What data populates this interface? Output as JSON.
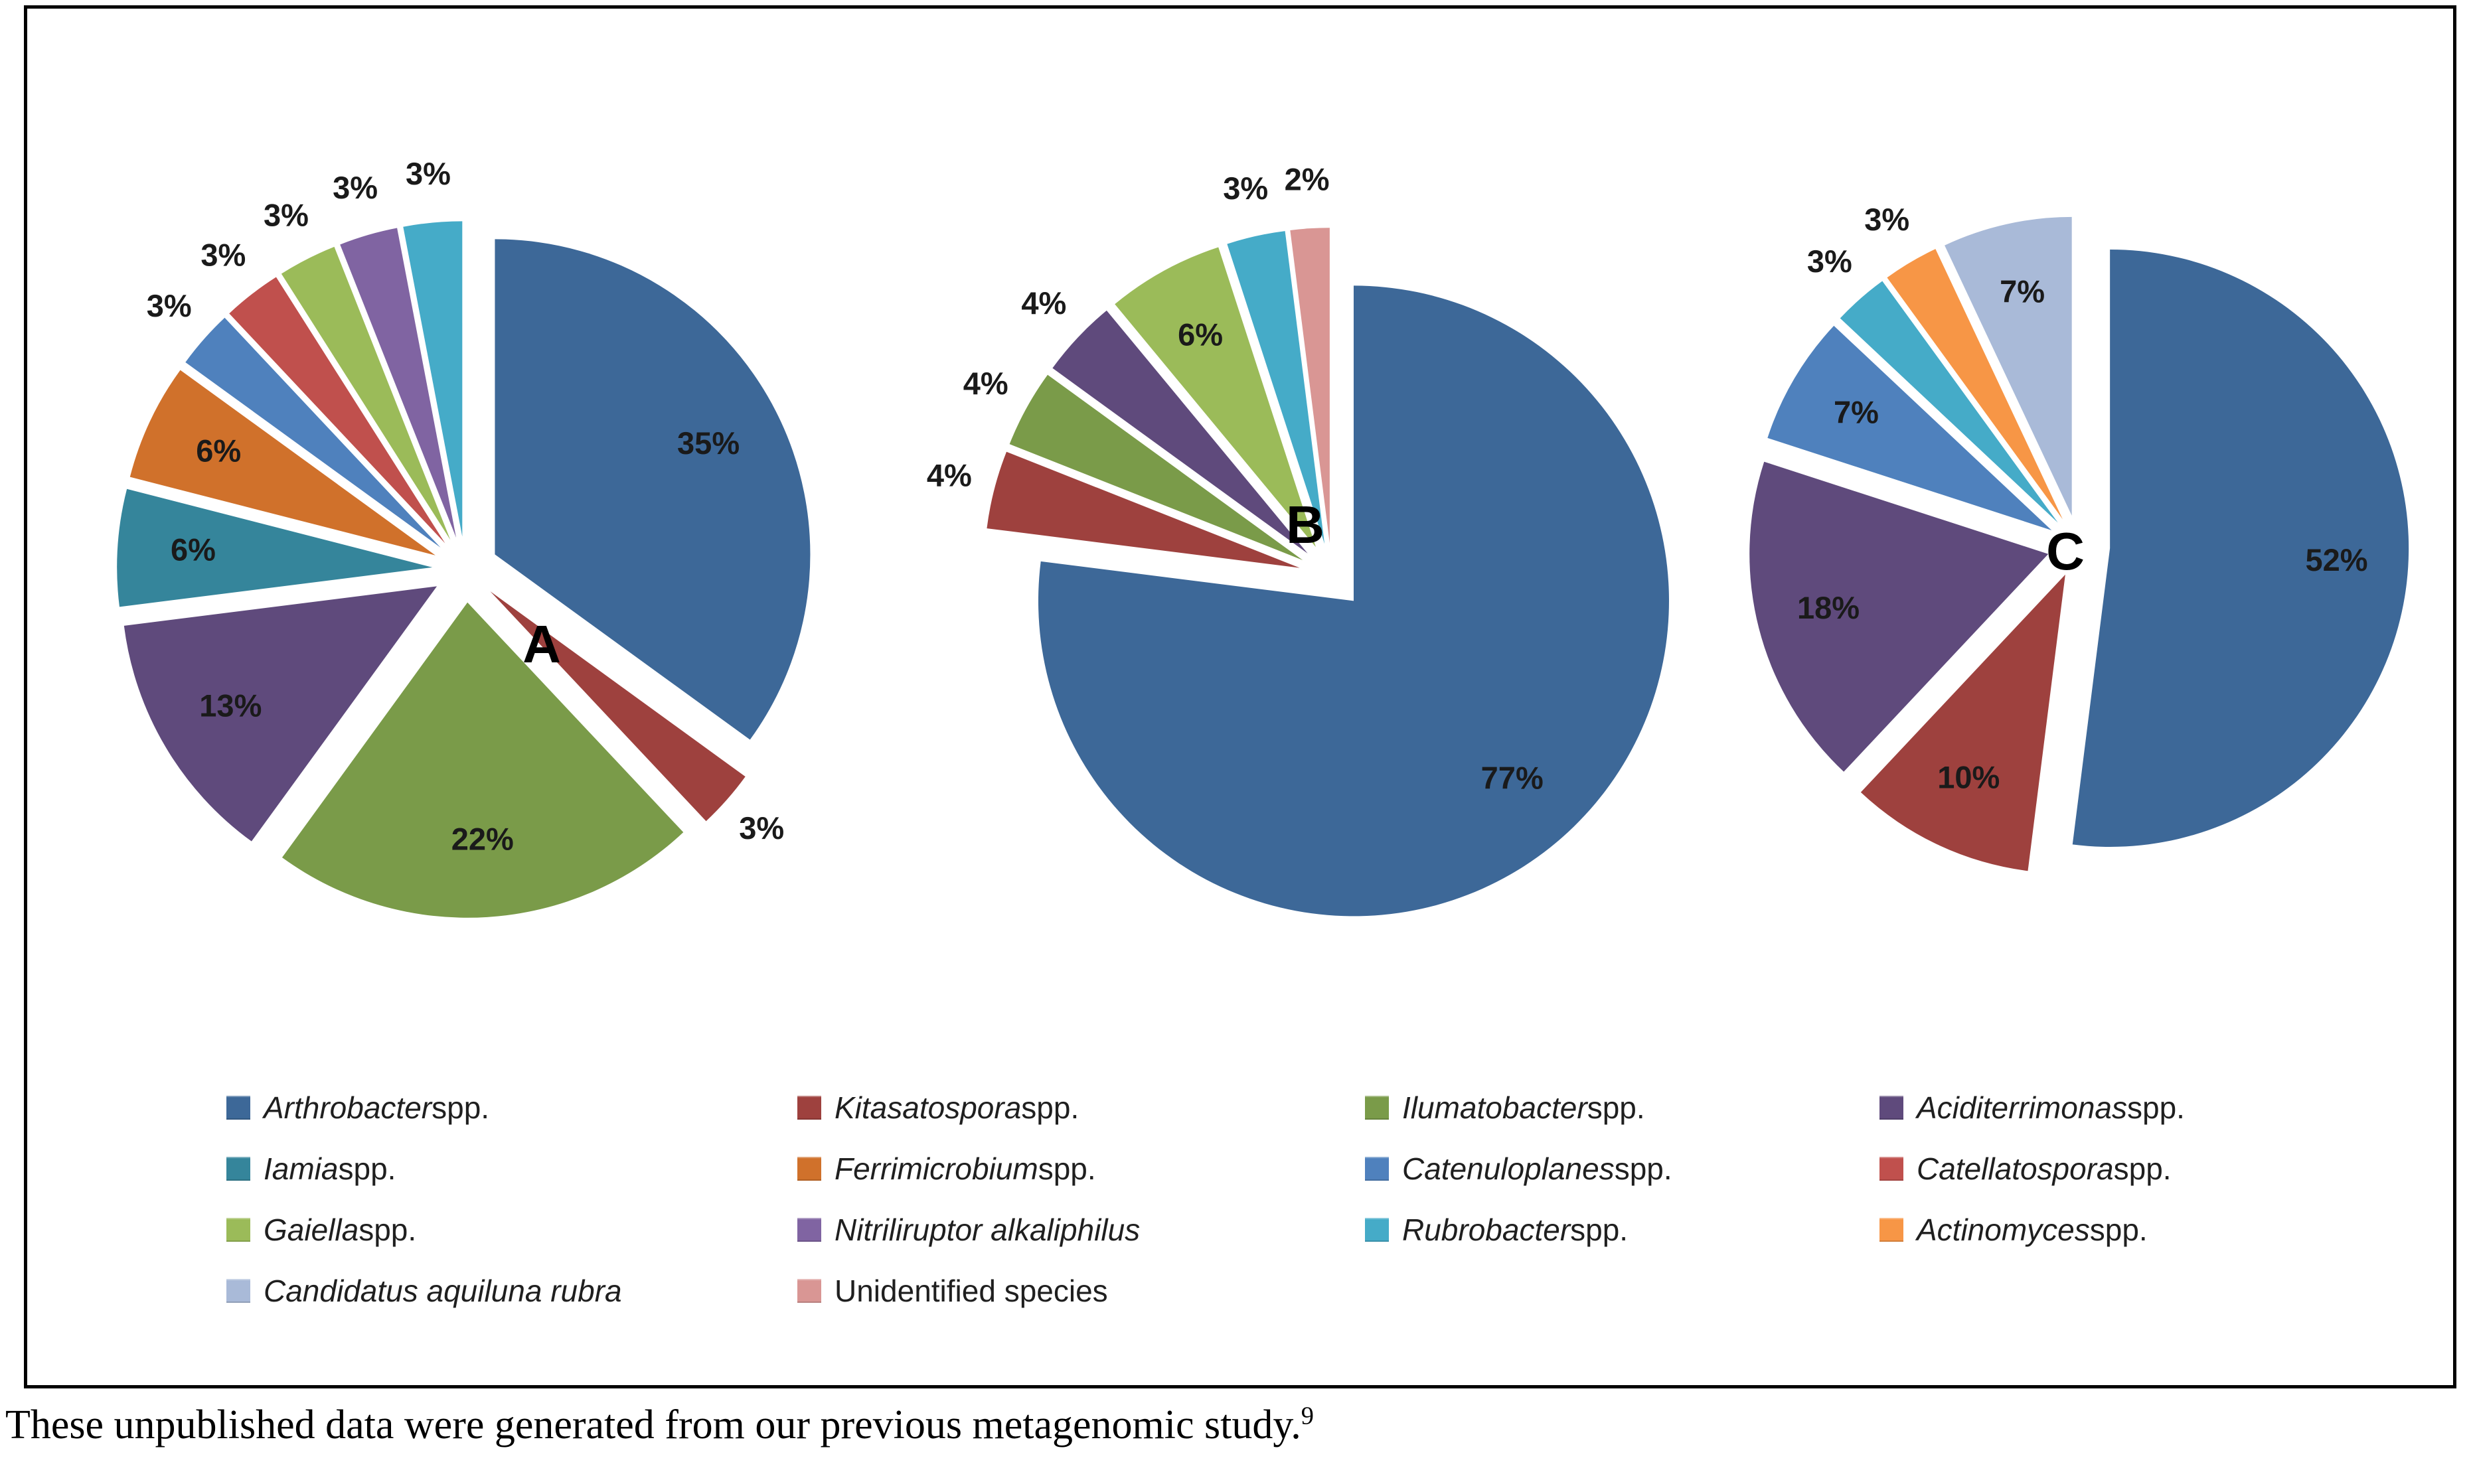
{
  "figure": {
    "panel": {
      "background": "#ffffff",
      "border_color": "#000000"
    },
    "caption": {
      "text": "These unpublished data were generated from our previous metagenomic study.",
      "superscript": "9"
    }
  },
  "palette": {
    "arthrobacter": "#3D6898",
    "kitasatospora": "#9E413E",
    "ilumatobacter": "#7A9B49",
    "aciditerrimonas": "#5F4A7C",
    "iamia": "#35859B",
    "ferrimicrobium": "#D0712B",
    "catenuloplanes": "#4F81BD",
    "catellatospora": "#C0504D",
    "gaiella": "#9BBB59",
    "nitriliruptor": "#8064A2",
    "rubrobacter": "#45ABC8",
    "actinomyces": "#F79646",
    "candidatus": "#A9BAD8",
    "unidentified": "#D99694"
  },
  "legend": {
    "columns": 4,
    "items": [
      {
        "label_italic": "Arthrobacter",
        "label_rest": " spp.",
        "color": "#3D6898"
      },
      {
        "label_italic": "Kitasatospora",
        "label_rest": " spp.",
        "color": "#9E413E"
      },
      {
        "label_italic": "Ilumatobacter",
        "label_rest": " spp.",
        "color": "#7A9B49"
      },
      {
        "label_italic": "Aciditerrimonas",
        "label_rest": " spp.",
        "color": "#5F4A7C"
      },
      {
        "label_italic": "Iamia",
        "label_rest": " spp.",
        "color": "#35859B"
      },
      {
        "label_italic": "Ferrimicrobium",
        "label_rest": " spp.",
        "color": "#D0712B"
      },
      {
        "label_italic": "Catenuloplanes",
        "label_rest": " spp.",
        "color": "#4F81BD"
      },
      {
        "label_italic": "Catellatospora",
        "label_rest": " spp.",
        "color": "#C0504D"
      },
      {
        "label_italic": "Gaiella",
        "label_rest": " spp.",
        "color": "#9BBB59"
      },
      {
        "label_italic": "Nitriliruptor alkaliphilus",
        "label_rest": "",
        "color": "#8064A2"
      },
      {
        "label_italic": "Rubrobacter",
        "label_rest": " spp.",
        "color": "#45ABC8"
      },
      {
        "label_italic": "Actinomyces",
        "label_rest": " spp.",
        "color": "#F79646"
      },
      {
        "label_italic": "Candidatus aquiluna rubra",
        "label_rest": "",
        "color": "#A9BAD8"
      },
      {
        "label_italic": "",
        "label_rest": "Unidentified species",
        "color": "#D99694"
      }
    ]
  },
  "chart_data": [
    {
      "type": "pie",
      "title": "A",
      "exploded": true,
      "unit": "%",
      "start_angle_deg": 0,
      "direction": "clockwise",
      "labels": [
        "Arthrobacter spp.",
        "Kitasatospora spp.",
        "Ilumatobacter spp.",
        "Aciditerrimonas spp.",
        "Iamia spp.",
        "Ferrimicrobium spp.",
        "Catenuloplanes spp.",
        "Catellatospora spp.",
        "Gaiella spp.",
        "Nitriliruptor alkaliphilus",
        "Rubrobacter spp."
      ],
      "values": [
        35,
        3,
        22,
        13,
        6,
        6,
        3,
        3,
        3,
        3,
        3
      ],
      "colors": [
        "#3D6898",
        "#9E413E",
        "#7A9B49",
        "#5F4A7C",
        "#35859B",
        "#D0712B",
        "#4F81BD",
        "#C0504D",
        "#9BBB59",
        "#8064A2",
        "#45ABC8"
      ]
    },
    {
      "type": "pie",
      "title": "B",
      "exploded": true,
      "unit": "%",
      "start_angle_deg": 0,
      "direction": "clockwise",
      "labels": [
        "Arthrobacter spp.",
        "Kitasatospora spp.",
        "Ilumatobacter spp.",
        "Aciditerrimonas spp.",
        "Gaiella spp.",
        "Rubrobacter spp.",
        "Unidentified species"
      ],
      "values": [
        77,
        4,
        4,
        4,
        6,
        3,
        2
      ],
      "colors": [
        "#3D6898",
        "#9E413E",
        "#7A9B49",
        "#5F4A7C",
        "#9BBB59",
        "#45ABC8",
        "#D99694"
      ]
    },
    {
      "type": "pie",
      "title": "C",
      "exploded": true,
      "unit": "%",
      "start_angle_deg": 0,
      "direction": "clockwise",
      "labels": [
        "Arthrobacter spp.",
        "Kitasatospora spp.",
        "Aciditerrimonas spp.",
        "Catenuloplanes spp.",
        "Rubrobacter spp.",
        "Actinomyces spp.",
        "Candidatus aquiluna rubra"
      ],
      "values": [
        52,
        10,
        18,
        7,
        3,
        3,
        7
      ],
      "colors": [
        "#3D6898",
        "#9E413E",
        "#5F4A7C",
        "#4F81BD",
        "#45ABC8",
        "#F79646",
        "#A9BAD8"
      ]
    }
  ]
}
